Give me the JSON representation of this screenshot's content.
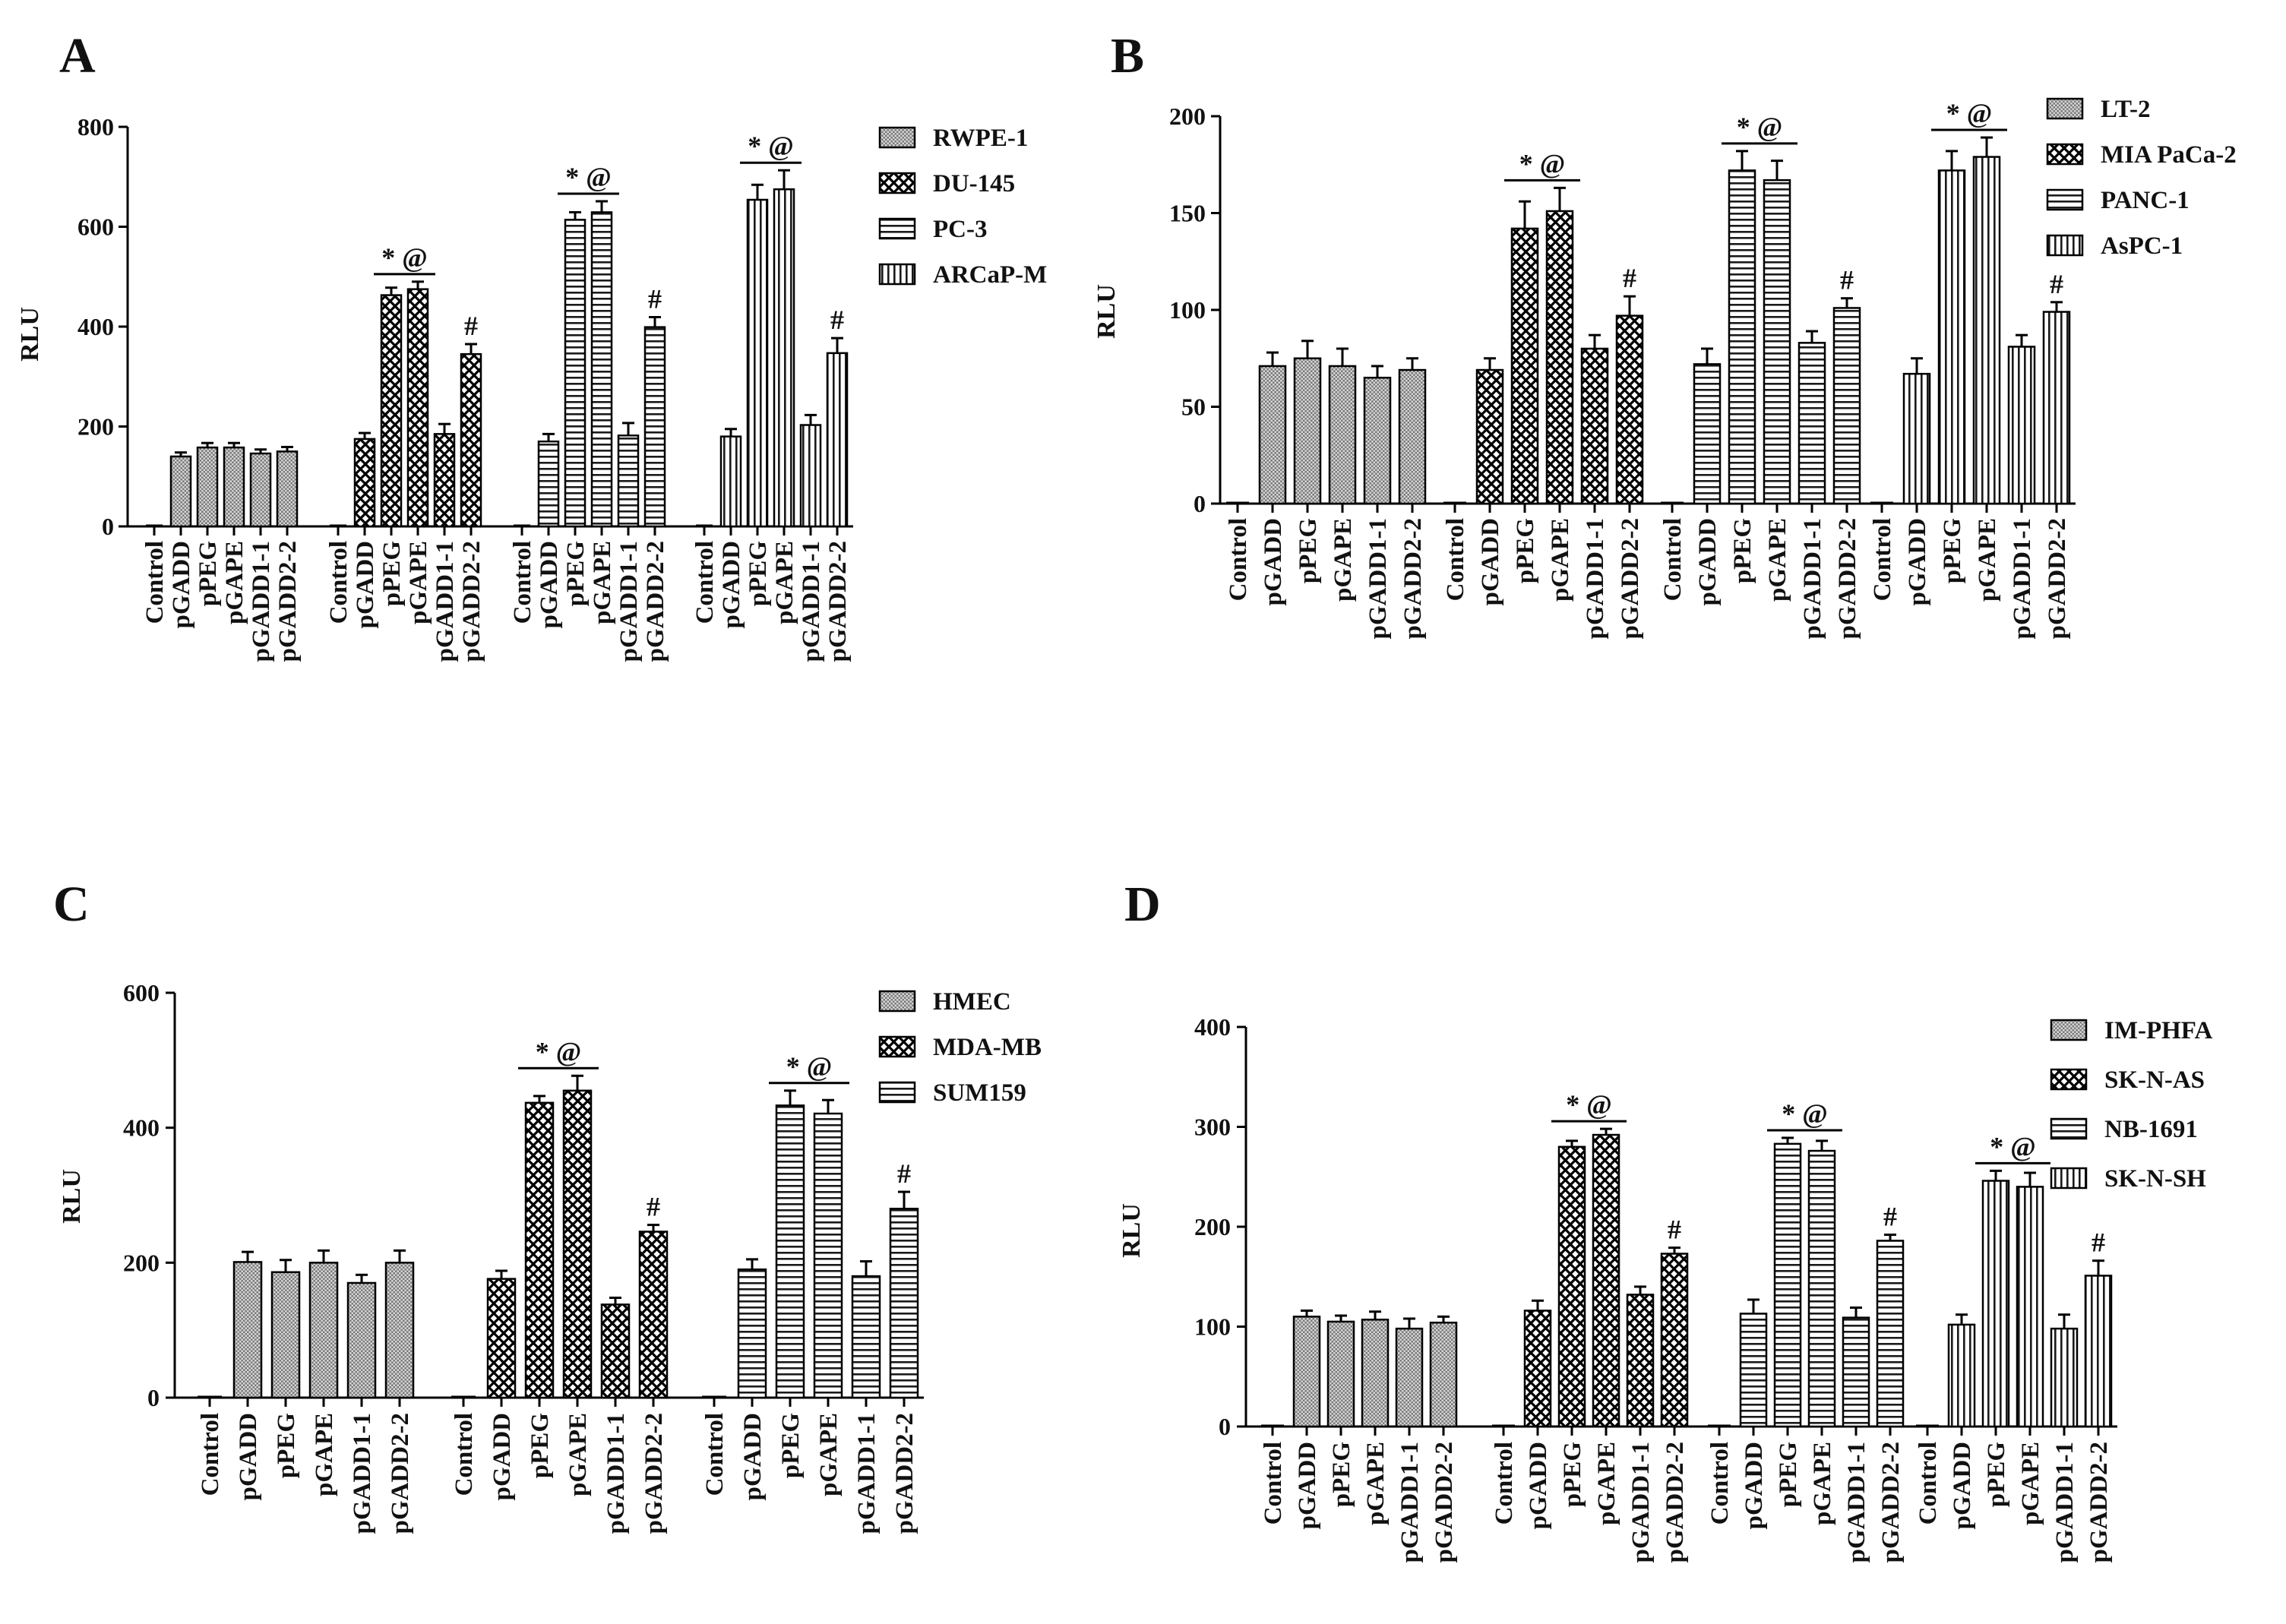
{
  "figure": {
    "description_panels": [
      "A",
      "B",
      "C",
      "D"
    ]
  },
  "chart_data": [
    {
      "panel": "A",
      "type": "bar",
      "ylabel": "RLU",
      "ylim": [
        0,
        800
      ],
      "yticks": [
        0,
        200,
        400,
        600,
        800
      ],
      "categories": [
        "Control",
        "pGADD",
        "pPEG",
        "pGAPE",
        "pGADD1-1",
        "pGADD2-2"
      ],
      "series": [
        {
          "name": "RWPE-1",
          "pattern": "dense",
          "values": [
            0,
            140,
            158,
            158,
            146,
            150
          ],
          "errors": [
            0,
            8,
            9,
            9,
            8,
            9
          ],
          "sig": "",
          "hash": false
        },
        {
          "name": "DU-145",
          "pattern": "check",
          "values": [
            0,
            175,
            463,
            475,
            185,
            345
          ],
          "errors": [
            0,
            12,
            15,
            15,
            20,
            20
          ],
          "sig": "* @",
          "hash": true
        },
        {
          "name": "PC-3",
          "pattern": "hline",
          "values": [
            0,
            170,
            614,
            629,
            182,
            399
          ],
          "errors": [
            0,
            15,
            15,
            22,
            25,
            20
          ],
          "sig": "* @",
          "hash": true
        },
        {
          "name": "ARCaP-M",
          "pattern": "vline",
          "values": [
            0,
            180,
            654,
            675,
            203,
            347
          ],
          "errors": [
            0,
            15,
            30,
            38,
            20,
            30
          ],
          "sig": "* @",
          "hash": true
        }
      ]
    },
    {
      "panel": "B",
      "type": "bar",
      "ylabel": "RLU",
      "ylim": [
        0,
        200
      ],
      "yticks": [
        0,
        50,
        100,
        150,
        200
      ],
      "categories": [
        "Control",
        "pGADD",
        "pPEG",
        "pGAPE",
        "pGADD1-1",
        "pGADD2-2"
      ],
      "series": [
        {
          "name": "LT-2",
          "pattern": "dense",
          "values": [
            0,
            71,
            75,
            71,
            65,
            69
          ],
          "errors": [
            0,
            7,
            9,
            9,
            6,
            6
          ],
          "sig": "",
          "hash": false
        },
        {
          "name": "MIA PaCa-2",
          "pattern": "check",
          "values": [
            0,
            69,
            142,
            151,
            80,
            97
          ],
          "errors": [
            0,
            6,
            14,
            12,
            7,
            10
          ],
          "sig": "* @",
          "hash": true
        },
        {
          "name": "PANC-1",
          "pattern": "hline",
          "values": [
            0,
            72,
            172,
            167,
            83,
            101
          ],
          "errors": [
            0,
            8,
            10,
            10,
            6,
            5
          ],
          "sig": "* @",
          "hash": true
        },
        {
          "name": "AsPC-1",
          "pattern": "vline",
          "values": [
            0,
            67,
            172,
            179,
            81,
            99
          ],
          "errors": [
            0,
            8,
            10,
            10,
            6,
            5
          ],
          "sig": "* @",
          "hash": true
        }
      ]
    },
    {
      "panel": "C",
      "type": "bar",
      "ylabel": "RLU",
      "ylim": [
        0,
        600
      ],
      "yticks": [
        0,
        200,
        400,
        600
      ],
      "categories": [
        "Control",
        "pGADD",
        "pPEG",
        "pGAPE",
        "pGADD1-1",
        "pGADD2-2"
      ],
      "series": [
        {
          "name": "HMEC",
          "pattern": "dense",
          "values": [
            0,
            201,
            186,
            200,
            170,
            200
          ],
          "errors": [
            0,
            15,
            18,
            18,
            12,
            18
          ],
          "sig": "",
          "hash": false
        },
        {
          "name": "MDA-MB",
          "pattern": "check",
          "values": [
            0,
            176,
            437,
            455,
            138,
            246
          ],
          "errors": [
            0,
            12,
            10,
            22,
            10,
            10
          ],
          "sig": "* @",
          "hash": true
        },
        {
          "name": "SUM159",
          "pattern": "hline",
          "values": [
            0,
            190,
            433,
            421,
            180,
            280
          ],
          "errors": [
            0,
            15,
            22,
            20,
            22,
            25
          ],
          "sig": "* @",
          "hash": true
        }
      ]
    },
    {
      "panel": "D",
      "type": "bar",
      "ylabel": "RLU",
      "ylim": [
        0,
        400
      ],
      "yticks": [
        0,
        100,
        200,
        300,
        400
      ],
      "categories": [
        "Control",
        "pGADD",
        "pPEG",
        "pGAPE",
        "pGADD1-1",
        "pGADD2-2"
      ],
      "series": [
        {
          "name": "IM-PHFA",
          "pattern": "dense",
          "values": [
            0,
            110,
            105,
            107,
            98,
            104
          ],
          "errors": [
            0,
            6,
            6,
            8,
            10,
            6
          ],
          "sig": "",
          "hash": false
        },
        {
          "name": "SK-N-AS",
          "pattern": "check",
          "values": [
            0,
            116,
            280,
            292,
            132,
            173
          ],
          "errors": [
            0,
            10,
            6,
            6,
            8,
            6
          ],
          "sig": "* @",
          "hash": true
        },
        {
          "name": "NB-1691",
          "pattern": "hline",
          "values": [
            0,
            113,
            283,
            276,
            109,
            186
          ],
          "errors": [
            0,
            14,
            6,
            10,
            10,
            6
          ],
          "sig": "* @",
          "hash": true
        },
        {
          "name": "SK-N-SH",
          "pattern": "vline",
          "values": [
            0,
            102,
            246,
            240,
            98,
            151
          ],
          "errors": [
            0,
            10,
            10,
            14,
            14,
            15
          ],
          "sig": "* @",
          "hash": true
        }
      ]
    }
  ]
}
